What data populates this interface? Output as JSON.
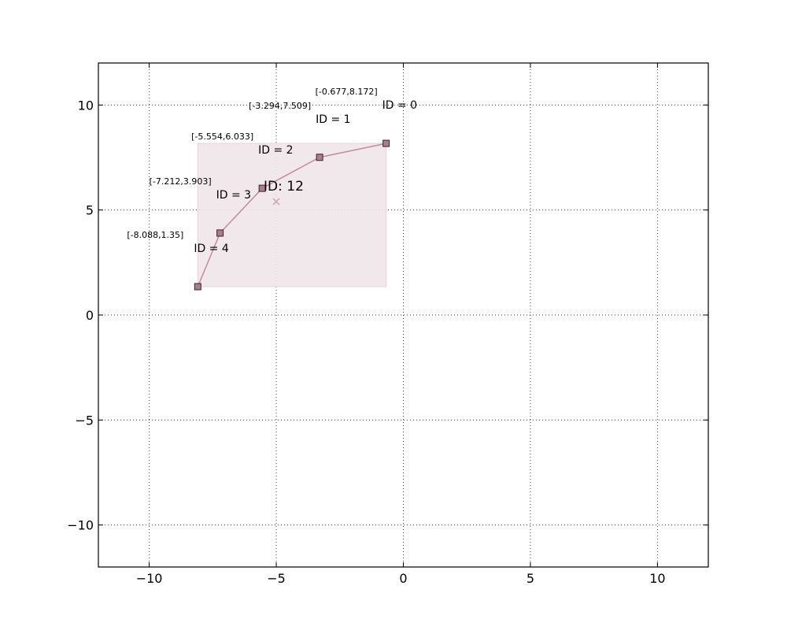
{
  "chart_data": {
    "type": "line",
    "title": "",
    "xlabel": "",
    "ylabel": "",
    "xlim": [
      -12,
      12
    ],
    "ylim": [
      -12,
      12
    ],
    "xticks": [
      -10,
      -5,
      0,
      5,
      10
    ],
    "yticks": [
      -10,
      -5,
      0,
      5,
      10
    ],
    "xtick_labels": [
      "−10",
      "−5",
      "0",
      "5",
      "10"
    ],
    "ytick_labels": [
      "−10",
      "−5",
      "0",
      "5",
      "10"
    ],
    "grid": true,
    "legend": "none",
    "colors": {
      "line": "#c48a9e",
      "marker_fill": "#b07b8f",
      "marker_edge": "#2a2a2a",
      "box_fill": "#f0e6ea",
      "box_edge": "#e6d2da",
      "center": "#c8a5b1"
    },
    "series": [
      {
        "points": [
          {
            "x": -0.677,
            "y": 8.172,
            "id_label": "ID = 0",
            "coord_label": "[-0.677,8.172]"
          },
          {
            "x": -3.294,
            "y": 7.509,
            "id_label": "ID = 1",
            "coord_label": "[-3.294,7.509]"
          },
          {
            "x": -5.554,
            "y": 6.033,
            "id_label": "ID = 2",
            "coord_label": "[-5.554,6.033]"
          },
          {
            "x": -7.212,
            "y": 3.903,
            "id_label": "ID = 3",
            "coord_label": "[-7.212,3.903]"
          },
          {
            "x": -8.088,
            "y": 1.35,
            "id_label": "ID = 4",
            "coord_label": "[-8.088,1.35]"
          }
        ]
      }
    ],
    "group": {
      "label": "ID: 12",
      "center": [
        -5,
        5.4
      ],
      "bbox_data": {
        "x_min": -8.088,
        "x_max": -0.677,
        "y_min": 1.35,
        "y_max": 8.172
      }
    }
  }
}
